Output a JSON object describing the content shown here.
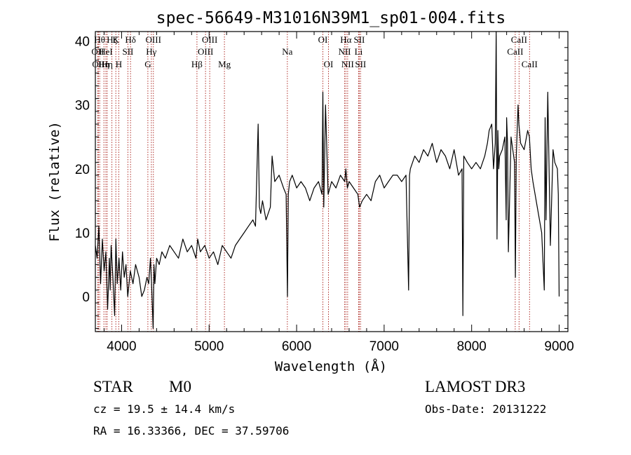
{
  "chart_data": {
    "type": "line",
    "title": "spec-56649-M31016N39M1_sp01-004.fits",
    "xlabel": "Wavelength (Å)",
    "ylabel": "Flux (relative)",
    "xlim": [
      3700,
      9100
    ],
    "ylim": [
      -5.5,
      41.5
    ],
    "xticks": [
      {
        "value": 4000,
        "label": "4000"
      },
      {
        "value": 5000,
        "label": "5000"
      },
      {
        "value": 6000,
        "label": "6000"
      },
      {
        "value": 7000,
        "label": "7000"
      },
      {
        "value": 8000,
        "label": "8000"
      },
      {
        "value": 9000,
        "label": "9000"
      }
    ],
    "yticks": [
      {
        "value": 0,
        "label": "0"
      },
      {
        "value": 10,
        "label": "10"
      },
      {
        "value": 20,
        "label": "20"
      },
      {
        "value": 30,
        "label": "30"
      },
      {
        "value": 40,
        "label": "40"
      }
    ],
    "series": [
      {
        "name": "flux",
        "color": "#000000",
        "x": [
          3700,
          3720,
          3740,
          3760,
          3780,
          3800,
          3820,
          3840,
          3860,
          3870,
          3880,
          3900,
          3920,
          3935,
          3950,
          3970,
          3990,
          4010,
          4030,
          4050,
          4070,
          4100,
          4130,
          4160,
          4200,
          4230,
          4260,
          4290,
          4310,
          4330,
          4345,
          4360,
          4370,
          4380,
          4400,
          4430,
          4460,
          4500,
          4550,
          4600,
          4650,
          4700,
          4750,
          4800,
          4850,
          4870,
          4900,
          4950,
          5000,
          5050,
          5100,
          5150,
          5200,
          5250,
          5300,
          5350,
          5400,
          5450,
          5500,
          5530,
          5560,
          5575,
          5590,
          5610,
          5650,
          5700,
          5720,
          5750,
          5800,
          5850,
          5880,
          5895,
          5905,
          5920,
          5950,
          6000,
          6050,
          6100,
          6150,
          6200,
          6250,
          6290,
          6300,
          6310,
          6330,
          6360,
          6400,
          6450,
          6500,
          6550,
          6563,
          6580,
          6600,
          6650,
          6700,
          6720,
          6750,
          6800,
          6850,
          6900,
          6950,
          7000,
          7050,
          7100,
          7150,
          7200,
          7250,
          7280,
          7290,
          7300,
          7350,
          7400,
          7450,
          7500,
          7550,
          7600,
          7650,
          7700,
          7750,
          7800,
          7850,
          7890,
          7900,
          7910,
          7950,
          8000,
          8050,
          8100,
          8150,
          8180,
          8200,
          8230,
          8250,
          8270,
          8280,
          8290,
          8300,
          8310,
          8320,
          8350,
          8380,
          8395,
          8400,
          8410,
          8420,
          8450,
          8490,
          8500,
          8510,
          8530,
          8540,
          8560,
          8600,
          8640,
          8660,
          8680,
          8700,
          8750,
          8800,
          8830,
          8840,
          8850,
          8870,
          8900,
          8930,
          8950,
          8980,
          8990,
          9000
        ],
        "y": [
          8,
          6,
          11,
          2,
          9,
          4,
          7,
          -2,
          6,
          1,
          8,
          3,
          -3,
          9,
          2,
          6,
          1,
          7,
          3,
          5,
          0,
          4,
          2,
          5,
          3,
          0,
          1,
          3,
          2,
          6,
          1,
          -5,
          5,
          2,
          6,
          5,
          7,
          6,
          8,
          7,
          6,
          9,
          7,
          8,
          6,
          9,
          7,
          8,
          6,
          7,
          5,
          8,
          7,
          6,
          8,
          9,
          10,
          11,
          12,
          11,
          27,
          14,
          13,
          15,
          12,
          14,
          22,
          18,
          19,
          17,
          16,
          0,
          16,
          18,
          19,
          17,
          18,
          17,
          15,
          17,
          18,
          16,
          32,
          14,
          30,
          16,
          18,
          17,
          19,
          18,
          20,
          17,
          18,
          17,
          16,
          14,
          15,
          16,
          15,
          18,
          19,
          17,
          18,
          19,
          19,
          18,
          19,
          1,
          19,
          20,
          22,
          21,
          23,
          22,
          24,
          21,
          23,
          22,
          20,
          23,
          19,
          20,
          -3,
          22,
          21,
          20,
          21,
          20,
          22,
          24,
          26,
          27,
          20,
          24,
          45,
          9,
          26,
          20,
          22,
          23,
          25,
          12,
          28,
          24,
          7,
          25,
          21,
          3,
          22,
          30,
          27,
          24,
          23,
          26,
          25,
          20,
          18,
          14,
          10,
          1,
          28,
          12,
          32,
          8,
          23,
          21,
          20,
          16,
          0
        ]
      }
    ],
    "lines": [
      {
        "wavelength": 3727,
        "label": "OII",
        "row": 2
      },
      {
        "wavelength": 3735,
        "label": "OII",
        "row": 3
      },
      {
        "wavelength": 3750,
        "label": "Hθ",
        "row": 1
      },
      {
        "wavelength": 3798,
        "label": "Hη",
        "row": 3
      },
      {
        "wavelength": 3820,
        "label": "HeI",
        "row": 2
      },
      {
        "wavelength": 3835,
        "label": "Hη",
        "row": 3
      },
      {
        "wavelength": 3889,
        "label": "Hζ",
        "row": 1
      },
      {
        "wavelength": 3934,
        "label": "K",
        "row": 1
      },
      {
        "wavelength": 3968,
        "label": "H",
        "row": 3
      },
      {
        "wavelength": 4072,
        "label": "SII",
        "row": 2
      },
      {
        "wavelength": 4102,
        "label": "Hδ",
        "row": 1
      },
      {
        "wavelength": 4300,
        "label": "G",
        "row": 3
      },
      {
        "wavelength": 4340,
        "label": "Hγ",
        "row": 2
      },
      {
        "wavelength": 4363,
        "label": "OIII",
        "row": 1
      },
      {
        "wavelength": 4861,
        "label": "Hβ",
        "row": 3
      },
      {
        "wavelength": 4959,
        "label": "OIII",
        "row": 2
      },
      {
        "wavelength": 5007,
        "label": "OIII",
        "row": 1
      },
      {
        "wavelength": 5175,
        "label": "Mg",
        "row": 3
      },
      {
        "wavelength": 5894,
        "label": "Na",
        "row": 2
      },
      {
        "wavelength": 6300,
        "label": "OI",
        "row": 1
      },
      {
        "wavelength": 6364,
        "label": "OI",
        "row": 3
      },
      {
        "wavelength": 6548,
        "label": "NII",
        "row": 2
      },
      {
        "wavelength": 6563,
        "label": "Hα",
        "row": 1
      },
      {
        "wavelength": 6583,
        "label": "NII",
        "row": 3
      },
      {
        "wavelength": 6708,
        "label": "Li",
        "row": 2
      },
      {
        "wavelength": 6716,
        "label": "SII",
        "row": 1
      },
      {
        "wavelength": 6731,
        "label": "SII",
        "row": 3
      },
      {
        "wavelength": 8498,
        "label": "CaII",
        "row": 2
      },
      {
        "wavelength": 8542,
        "label": "CaII",
        "row": 1
      },
      {
        "wavelength": 8662,
        "label": "CaII",
        "row": 3
      }
    ]
  },
  "info": {
    "class_label": "STAR",
    "subclass": "M0",
    "redshift": "cz =  19.5 ± 14.4 km/s",
    "coords": "RA =  16.33366, DEC =  37.59706",
    "survey": "LAMOST DR3",
    "obs_date": "Obs-Date: 20131222"
  }
}
